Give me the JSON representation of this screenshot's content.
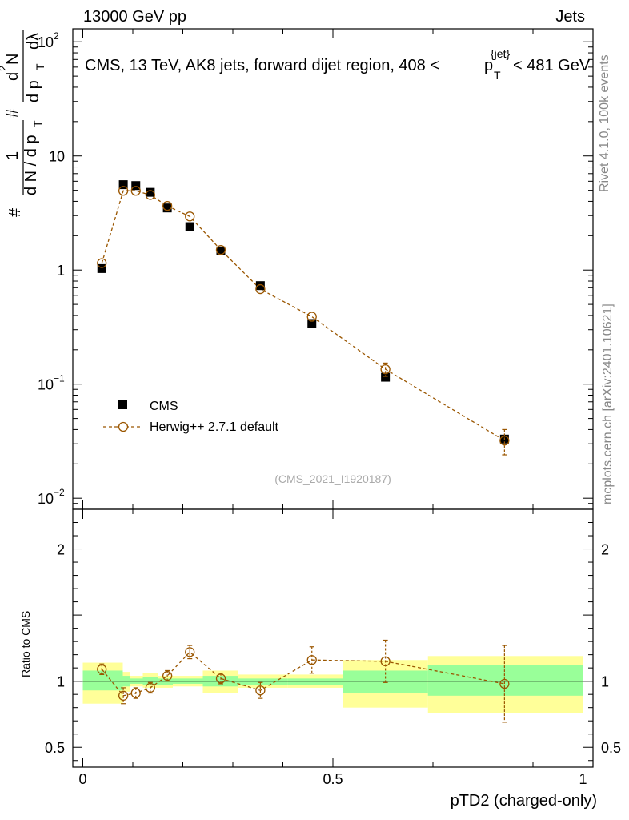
{
  "header": {
    "left_title": "13000 GeV pp",
    "right_title": "Jets"
  },
  "side_labels": {
    "rivet": "Rivet 4.1.0,  100k events",
    "mcplots": "mcplots.cern.ch [arXiv:2401.10621]"
  },
  "chart_data": [
    {
      "type": "scatter",
      "title": "CMS, 13 TeV, AK8 jets, forward dijet region, 408 <p_T^{jet}< 481 GeV",
      "title_parts": {
        "before": "CMS, 13 TeV, AK8 jets, forward dijet region, 408 <",
        "p": "p",
        "sub": "T",
        "sup": "{jet}",
        "after": "< 481 GeV"
      },
      "ylabel_parts": {
        "hash1": "#",
        "one": "1",
        "dNdpT": "d N / d p",
        "T1": "T",
        "hash2": "#",
        "num_prefix": "d",
        "num_sup": "2",
        "num_N": "N",
        "den": "d p",
        "T2": "T",
        "dlambda": "dλ"
      },
      "y_scale": "log",
      "ylim": [
        0.008,
        130
      ],
      "xlim": [
        -0.02,
        1.02
      ],
      "y_ticks": [
        {
          "value": 0.01,
          "base": "10",
          "exp": "−2"
        },
        {
          "value": 0.1,
          "base": "10",
          "exp": "−1"
        },
        {
          "value": 1,
          "label": "1"
        },
        {
          "value": 10,
          "label": "10"
        },
        {
          "value": 100,
          "base": "10",
          "exp": "2"
        }
      ],
      "watermark": "(CMS_2021_I1920187)",
      "legend": {
        "position": "bottom-left",
        "entries": [
          {
            "label": "CMS",
            "marker": "filled-square",
            "color": "#000000"
          },
          {
            "label": "Herwig++ 2.7.1 default",
            "marker": "open-circle-dashed",
            "color": "#9a5600"
          }
        ]
      },
      "bins": [
        {
          "lo": 0.0,
          "hi": 0.08
        },
        {
          "lo": 0.08,
          "hi": 0.095
        },
        {
          "lo": 0.095,
          "hi": 0.12
        },
        {
          "lo": 0.12,
          "hi": 0.15
        },
        {
          "lo": 0.15,
          "hi": 0.18
        },
        {
          "lo": 0.18,
          "hi": 0.24
        },
        {
          "lo": 0.24,
          "hi": 0.31
        },
        {
          "lo": 0.31,
          "hi": 0.41
        },
        {
          "lo": 0.41,
          "hi": 0.52
        },
        {
          "lo": 0.52,
          "hi": 0.69
        },
        {
          "lo": 0.69,
          "hi": 1.0
        }
      ],
      "series": [
        {
          "name": "CMS",
          "x": [
            0.038,
            0.081,
            0.106,
            0.135,
            0.169,
            0.214,
            0.276,
            0.355,
            0.458,
            0.605,
            0.843
          ],
          "y": [
            1.03,
            5.6,
            5.5,
            4.8,
            3.5,
            2.4,
            1.47,
            0.73,
            0.34,
            0.115,
            0.033
          ]
        },
        {
          "name": "Herwig++ 2.7.1 default",
          "x": [
            0.038,
            0.081,
            0.106,
            0.135,
            0.169,
            0.214,
            0.276,
            0.355,
            0.458,
            0.605,
            0.843
          ],
          "y": [
            1.15,
            4.95,
            4.95,
            4.55,
            3.65,
            2.95,
            1.5,
            0.68,
            0.39,
            0.135,
            0.032
          ],
          "err_lo": [
            0.04,
            0.15,
            0.15,
            0.15,
            0.12,
            0.1,
            0.06,
            0.04,
            0.035,
            0.018,
            0.008
          ],
          "err_hi": [
            0.04,
            0.15,
            0.15,
            0.15,
            0.12,
            0.1,
            0.06,
            0.04,
            0.035,
            0.018,
            0.008
          ]
        }
      ]
    },
    {
      "type": "scatter",
      "ylabel": "Ratio to CMS",
      "xlabel": "pTD2 (charged-only)",
      "y_scale": "linear",
      "ylim": [
        0.35,
        2.3
      ],
      "xlim": [
        -0.02,
        1.02
      ],
      "y_ticks": [
        0.5,
        1,
        1.5,
        2
      ],
      "y_tick_labels": [
        {
          "value": 0.5,
          "label": "0.5"
        },
        {
          "value": 1,
          "label": "1"
        },
        {
          "value": 2,
          "label": "2"
        }
      ],
      "x_ticks": [
        0,
        0.1,
        0.2,
        0.3,
        0.4,
        0.5,
        0.6,
        0.7,
        0.8,
        0.9,
        1.0
      ],
      "x_tick_labels": [
        {
          "value": 0,
          "label": "0"
        },
        {
          "value": 0.5,
          "label": "0.5"
        },
        {
          "value": 1,
          "label": "1"
        }
      ],
      "band_colors": {
        "inner": "#99ff99",
        "outer": "#ffff99"
      },
      "bands": [
        {
          "lo": 0.0,
          "hi": 0.08,
          "in_lo": 0.93,
          "in_hi": 1.08,
          "out_lo": 0.83,
          "out_hi": 1.14
        },
        {
          "lo": 0.08,
          "hi": 0.095,
          "in_lo": 0.96,
          "in_hi": 1.04,
          "out_lo": 0.92,
          "out_hi": 1.07
        },
        {
          "lo": 0.095,
          "hi": 0.12,
          "in_lo": 0.98,
          "in_hi": 1.02,
          "out_lo": 0.96,
          "out_hi": 1.04
        },
        {
          "lo": 0.12,
          "hi": 0.15,
          "in_lo": 0.97,
          "in_hi": 1.03,
          "out_lo": 0.95,
          "out_hi": 1.06
        },
        {
          "lo": 0.15,
          "hi": 0.18,
          "in_lo": 0.97,
          "in_hi": 1.02,
          "out_lo": 0.95,
          "out_hi": 1.04
        },
        {
          "lo": 0.18,
          "hi": 0.24,
          "in_lo": 0.98,
          "in_hi": 1.02,
          "out_lo": 0.96,
          "out_hi": 1.04
        },
        {
          "lo": 0.24,
          "hi": 0.31,
          "in_lo": 0.96,
          "in_hi": 1.04,
          "out_lo": 0.91,
          "out_hi": 1.08
        },
        {
          "lo": 0.31,
          "hi": 0.41,
          "in_lo": 0.97,
          "in_hi": 1.02,
          "out_lo": 0.95,
          "out_hi": 1.05
        },
        {
          "lo": 0.41,
          "hi": 0.52,
          "in_lo": 0.97,
          "in_hi": 1.02,
          "out_lo": 0.95,
          "out_hi": 1.05
        },
        {
          "lo": 0.52,
          "hi": 0.69,
          "in_lo": 0.91,
          "in_hi": 1.08,
          "out_lo": 0.8,
          "out_hi": 1.16
        },
        {
          "lo": 0.69,
          "hi": 1.0,
          "in_lo": 0.89,
          "in_hi": 1.12,
          "out_lo": 0.76,
          "out_hi": 1.19
        }
      ],
      "series": [
        {
          "name": "Herwig++ 2.7.1 default",
          "x": [
            0.038,
            0.081,
            0.106,
            0.135,
            0.169,
            0.214,
            0.276,
            0.355,
            0.458,
            0.605,
            0.843
          ],
          "y": [
            1.09,
            0.89,
            0.91,
            0.95,
            1.04,
            1.22,
            1.02,
            0.93,
            1.16,
            1.15,
            0.98
          ],
          "err_lo": [
            0.04,
            0.06,
            0.04,
            0.04,
            0.04,
            0.05,
            0.04,
            0.06,
            0.1,
            0.16,
            0.29
          ],
          "err_hi": [
            0.04,
            0.06,
            0.04,
            0.04,
            0.04,
            0.05,
            0.04,
            0.06,
            0.1,
            0.16,
            0.29
          ]
        }
      ]
    }
  ]
}
